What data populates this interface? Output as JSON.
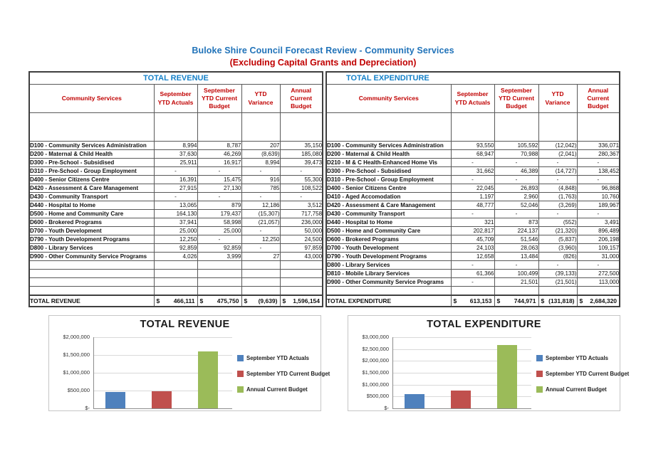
{
  "page": {
    "title": "Buloke Shire Council Forecast Review - Community Services",
    "subtitle": "(Excluding Capital Grants and Depreciation)"
  },
  "colors": {
    "page_title_blue": "#2173B9",
    "section_title_blue": "#1580C8",
    "header_red": "#C00000",
    "series_colors": [
      "#4F81BD",
      "#C0504D",
      "#9BBB59"
    ]
  },
  "tables": [
    {
      "name": "revenue",
      "section_title": "TOTAL REVENUE",
      "title_style": "center",
      "columns": [
        "Community Services",
        "September YTD Actuals",
        "September YTD Current Budget",
        "YTD Variance",
        "Annual Current Budget"
      ],
      "rows": [
        [
          "D100 - Community Services Administration",
          "8,994",
          "8,787",
          "207",
          "35,150"
        ],
        [
          "D200 - Maternal & Child Health",
          "37,630",
          "46,269",
          "(8,639)",
          "185,080"
        ],
        [
          "D300 - Pre-School - Subsidised",
          "25,911",
          "16,917",
          "8,994",
          "39,473"
        ],
        [
          "D310 - Pre-School - Group Employment",
          "-",
          "-",
          "-",
          "-"
        ],
        [
          "D400 - Senior Citizens Centre",
          "16,391",
          "15,475",
          "916",
          "55,300"
        ],
        [
          "D420 - Assessment & Care Management",
          "27,915",
          "27,130",
          "785",
          "108,522"
        ],
        [
          "D430 - Community Transport",
          "-",
          "-",
          "-",
          "-"
        ],
        [
          "D440 - Hospital to Home",
          "13,065",
          "879",
          "12,186",
          "3,512"
        ],
        [
          "D500 - Home and Community Care",
          "164,130",
          "179,437",
          "(15,307)",
          "717,758"
        ],
        [
          "D600 - Brokered Programs",
          "37,941",
          "58,998",
          "(21,057)",
          "236,000"
        ],
        [
          "D700 - Youth Development",
          "25,000",
          "25,000",
          "-",
          "50,000"
        ],
        [
          "D790 - Youth Development Programs",
          "12,250",
          "-",
          "12,250",
          "24,500"
        ],
        [
          "D800 - Library Services",
          "92,859",
          "92,859",
          "-",
          "97,859"
        ],
        [
          "D900 - Other Community Service Programs",
          "4,026",
          "3,999",
          "27",
          "43,000"
        ]
      ],
      "blank_rows": 4,
      "total": {
        "label": "TOTAL REVENUE",
        "currency": "$",
        "values": [
          "466,111",
          "475,750",
          "(9,639)",
          "1,596,154"
        ]
      }
    },
    {
      "name": "expenditure",
      "section_title": "TOTAL EXPENDITURE",
      "title_style": "left",
      "columns": [
        "Community Services",
        "September YTD Actuals",
        "September YTD Current Budget",
        "YTD Variance",
        "Annual Current Budget"
      ],
      "rows": [
        [
          "D100 - Community Services Administration",
          "93,550",
          "105,592",
          "(12,042)",
          "336,071"
        ],
        [
          "D200 - Maternal & Child Health",
          "68,947",
          "70,988",
          "(2,041)",
          "280,367"
        ],
        [
          "D210 - M & C Health-Enhanced Home Vis",
          "-",
          "-",
          "-",
          "-"
        ],
        [
          "D300 - Pre-School - Subsidised",
          "31,662",
          "46,389",
          "(14,727)",
          "138,452"
        ],
        [
          "D310 - Pre-School - Group Employment",
          "-",
          "-",
          "-",
          "-"
        ],
        [
          "D400 - Senior Citizens Centre",
          "22,045",
          "26,893",
          "(4,848)",
          "96,868"
        ],
        [
          "D410 - Aged Accomodation",
          "1,197",
          "2,960",
          "(1,763)",
          "10,760"
        ],
        [
          "D420 - Assessment & Care Management",
          "48,777",
          "52,046",
          "(3,269)",
          "189,967"
        ],
        [
          "D430 - Community Transport",
          "-",
          "-",
          "-",
          "-"
        ],
        [
          "D440 - Hospital to Home",
          "321",
          "873",
          "(552)",
          "3,491"
        ],
        [
          "D500 - Home and Community Care",
          "202,817",
          "224,137",
          "(21,320)",
          "896,489"
        ],
        [
          "D600 - Brokered Programs",
          "45,709",
          "51,546",
          "(5,837)",
          "206,198"
        ],
        [
          "D700 - Youth Development",
          "24,103",
          "28,063",
          "(3,960)",
          "109,157"
        ],
        [
          "D790 - Youth Development Programs",
          "12,658",
          "13,484",
          "(826)",
          "31,000"
        ],
        [
          "D800 - Library Services",
          "-",
          "-",
          "-",
          "-"
        ],
        [
          "D810 - Mobile Library Services",
          "61,366",
          "100,499",
          "(39,133)",
          "272,500"
        ],
        [
          "D900 - Other Community Service Programs",
          "-",
          "21,501",
          "(21,501)",
          "113,000"
        ]
      ],
      "blank_rows": 1,
      "total": {
        "label": "TOTAL EXPENDITURE",
        "currency": "$",
        "values": [
          "613,153",
          "744,971",
          "(131,818)",
          "2,684,320"
        ]
      }
    }
  ],
  "chart_data": [
    {
      "type": "bar",
      "title": "TOTAL REVENUE",
      "categories": [
        ""
      ],
      "series": [
        {
          "name": "September YTD Actuals",
          "color": "#4F81BD",
          "values": [
            466111
          ]
        },
        {
          "name": "September YTD Current Budget",
          "color": "#C0504D",
          "values": [
            475750
          ]
        },
        {
          "name": "Annual Current Budget",
          "color": "#9BBB59",
          "values": [
            1596154
          ]
        }
      ],
      "ylim": [
        0,
        2000000
      ],
      "yticks": [
        "$2,000,000",
        "$1,500,000",
        "$1,000,000",
        "$500,000",
        "$-"
      ],
      "legend_position": "right",
      "grid": true
    },
    {
      "type": "bar",
      "title": "TOTAL EXPENDITURE",
      "categories": [
        ""
      ],
      "series": [
        {
          "name": "September YTD Actuals",
          "color": "#4F81BD",
          "values": [
            613153
          ]
        },
        {
          "name": "September YTD Current Budget",
          "color": "#C0504D",
          "values": [
            744971
          ]
        },
        {
          "name": "Annual Current Budget",
          "color": "#9BBB59",
          "values": [
            2684320
          ]
        }
      ],
      "ylim": [
        0,
        3000000
      ],
      "yticks": [
        "$3,000,000",
        "$2,500,000",
        "$2,000,000",
        "$1,500,000",
        "$1,000,000",
        "$500,000",
        "$-"
      ],
      "legend_position": "right",
      "grid": true
    }
  ]
}
